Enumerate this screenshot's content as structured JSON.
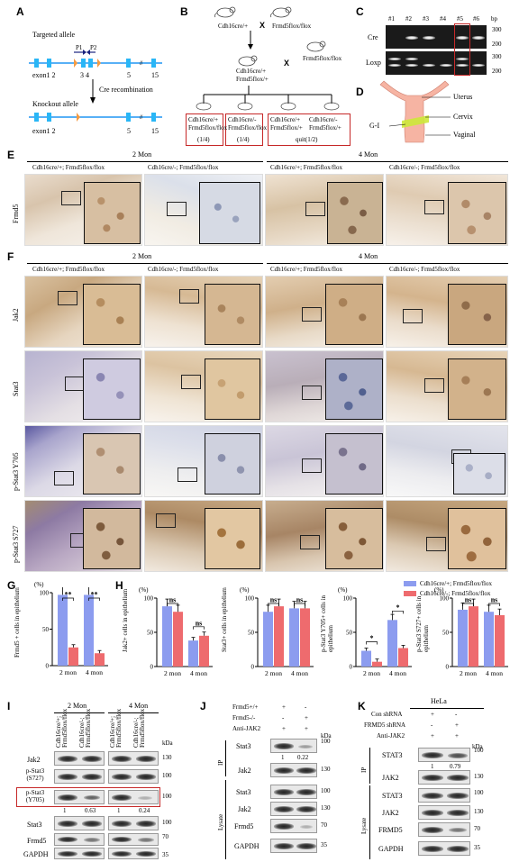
{
  "labels": {
    "A": "A",
    "B": "B",
    "C": "C",
    "D": "D",
    "E": "E",
    "F": "F",
    "G": "G",
    "H": "H",
    "I": "I",
    "J": "J",
    "K": "K"
  },
  "panelA": {
    "targeted": "Targeted allele",
    "p1": "P1",
    "p2": "P2",
    "exon_top": "exon1 2",
    "n34": "3 4",
    "n5": "5",
    "n15": "15",
    "cre": "Cre recombination",
    "knockout": "Knockout allele",
    "exon_bot": "exon1 2",
    "n5b": "5",
    "n15b": "15"
  },
  "panelB": {
    "mouse1": "Cdh16cre/+",
    "cross": "X",
    "mouse2": "Frmd5flox/flox",
    "f1a": "Cdh16cre/+",
    "f1b": "Frmd5flox/+",
    "cross2": "X",
    "mouse3": "Frmd5flox/flox",
    "o1a": "Cdh16cre/+",
    "o1b": "Frmd5flox/flox",
    "o1c": "(1/4)",
    "o2a": "Cdh16cre/-",
    "o2b": "Frmd5flox/flox",
    "o2c": "(1/4)",
    "o3a": "Cdh16cre/+",
    "o3b": "Frmd5flox/+",
    "o4a": "Cdh16cre/-",
    "o4b": "Frmd5flox/+",
    "o34c": "quit(1/2)"
  },
  "panelC": {
    "lanes": [
      "#1",
      "#2",
      "#3",
      "#4",
      "#5",
      "#6"
    ],
    "bp": "bp",
    "row1": "Cre",
    "row2": "Loxp",
    "m300a": "300",
    "m200a": "200",
    "m300b": "300",
    "m200b": "200"
  },
  "panelD": {
    "uterus": "Uterus",
    "cervix": "Cervix",
    "gi": "G-I",
    "vaginal": "Vaginal"
  },
  "panelE": {
    "mon2": "2 Mon",
    "mon4": "4 Mon",
    "g1": "Cdh16cre/+; Frmd5flox/flox",
    "g2": "Cdh16cre/-; Frmd5flox/flox",
    "g3": "Cdh16cre/+; Frmd5flox/flox",
    "g4": "Cdh16cre/-; Frmd5flox/flox",
    "row": "Frmd5"
  },
  "panelF": {
    "mon2": "2 Mon",
    "mon4": "4 Mon",
    "g1": "Cdh16cre/+; Frmd5flox/flox",
    "g2": "Cdh16cre/-; Frmd5flox/flox",
    "g3": "Cdh16cre/+; Frmd5flox/flox",
    "g4": "Cdh16cre/-; Frmd5flox/flox",
    "rows": [
      "Jak2",
      "Stat3",
      "p-Stat3 Y705",
      "p-Stat3 S727"
    ]
  },
  "panelG": {
    "ylabel": "Frmd5 + cells in epithelium",
    "unit": "(%)",
    "ticks": [
      "100",
      "50",
      "0"
    ],
    "xticks": [
      "2 mon",
      "4 mon"
    ],
    "sig": [
      "**",
      "**"
    ]
  },
  "panelH": {
    "legend1": "Cdh16cre/+; Frmd5flox/flox",
    "legend2": "Cdh16cre/-; Frmd5flox/flox",
    "unit": "(%)",
    "charts": [
      {
        "ylabel": "Jak2+ cells in epithelium",
        "ticks": [
          "100",
          "50",
          "0"
        ],
        "sig": [
          "ns",
          "ns"
        ]
      },
      {
        "ylabel": "Stat3+ cells in epithelium",
        "ticks": [
          "100",
          "50",
          "0"
        ],
        "sig": [
          "ns",
          "ns"
        ]
      },
      {
        "ylabel": "p-Stat3 Y705+ cells in epithelium",
        "ticks": [
          "100",
          "50",
          "0"
        ],
        "sig": [
          "*",
          "*"
        ]
      },
      {
        "ylabel": "p-Stat3 S727+ cells in epithelium",
        "ticks": [
          "100",
          "50",
          "0"
        ],
        "sig": [
          "ns",
          "ns"
        ]
      }
    ],
    "xticks": [
      "2 mon",
      "4 mon"
    ]
  },
  "panelI": {
    "mon2": "2 Mon",
    "mon4": "4 Mon",
    "col1": "Cdh16cre/+; Frmd5flox/flox",
    "col2": "Cdh16cre/-; Frmd5flox/flox",
    "rows": [
      "Jak2",
      "p-Stat3 (S727)",
      "p-Stat3 (Y705)",
      "Stat3",
      "Frmd5",
      "GAPDH"
    ],
    "kda": "kDa",
    "mw": [
      "130",
      "100",
      "100",
      "70",
      "35"
    ],
    "q1": "1",
    "q2": "0.63",
    "q3": "1",
    "q4": "0.24"
  },
  "panelJ": {
    "h1": "Frmd5+/+",
    "h2": "Frmd5-/-",
    "h3": "Anti-JAK2",
    "s1": [
      "+",
      "-"
    ],
    "s2": [
      "-",
      "+"
    ],
    "s3": [
      "+",
      "+"
    ],
    "kda": "kDa",
    "ip": "IP",
    "lysate": "Lysate",
    "rows": [
      "Stat3",
      "Jak2",
      "Stat3",
      "Jak2",
      "Frmd5",
      "GAPDH"
    ],
    "mw": [
      "100",
      "130",
      "100",
      "130",
      "70",
      "35"
    ],
    "q1": "1",
    "q2": "0.22"
  },
  "panelK": {
    "hela": "HeLa",
    "h1": "Con shRNA",
    "h2": "FRMD5 shRNA",
    "h3": "Anti-JAK2",
    "s1": [
      "+",
      "-"
    ],
    "s2": [
      "-",
      "+"
    ],
    "s3": [
      "+",
      "+"
    ],
    "kda": "kDa",
    "ip": "IP",
    "lysate": "Lysate",
    "rows": [
      "STAT3",
      "JAK2",
      "STAT3",
      "JAK2",
      "FRMD5",
      "GAPDH"
    ],
    "mw": [
      "100",
      "130",
      "100",
      "130",
      "70",
      "35"
    ],
    "q1": "1",
    "q2": "0.79"
  },
  "colors": {
    "blue": "#8c9cef",
    "red": "#ee6b6e",
    "boxred": "#c62828"
  },
  "chart_data": [
    {
      "type": "bar",
      "categories": [
        "2 mon",
        "4 mon"
      ],
      "series": [
        {
          "name": "Cdh16cre/+; Frmd5flox/flox",
          "values": [
            97,
            97
          ]
        },
        {
          "name": "Cdh16cre/-; Frmd5flox/flox",
          "values": [
            25,
            17
          ]
        }
      ],
      "ylabel": "Frmd5 + cells in epithelium",
      "ylim": [
        0,
        100
      ]
    },
    {
      "type": "bar",
      "categories": [
        "2 mon",
        "4 mon"
      ],
      "series": [
        {
          "name": "Cdh16cre/+; Frmd5flox/flox",
          "values": [
            88,
            38
          ]
        },
        {
          "name": "Cdh16cre/-; Frmd5flox/flox",
          "values": [
            80,
            45
          ]
        }
      ],
      "ylabel": "Jak2+ cells in epithelium",
      "ylim": [
        0,
        100
      ]
    },
    {
      "type": "bar",
      "categories": [
        "2 mon",
        "4 mon"
      ],
      "series": [
        {
          "name": "Cdh16cre/+; Frmd5flox/flox",
          "values": [
            80,
            85
          ]
        },
        {
          "name": "Cdh16cre/-; Frmd5flox/flox",
          "values": [
            88,
            85
          ]
        }
      ],
      "ylabel": "Stat3+ cells in epithelium",
      "ylim": [
        0,
        100
      ]
    },
    {
      "type": "bar",
      "categories": [
        "2 mon",
        "4 mon"
      ],
      "series": [
        {
          "name": "Cdh16cre/+; Frmd5flox/flox",
          "values": [
            23,
            68
          ]
        },
        {
          "name": "Cdh16cre/-; Frmd5flox/flox",
          "values": [
            7,
            27
          ]
        }
      ],
      "ylabel": "p-Stat3 Y705+ cells in epithelium",
      "ylim": [
        0,
        100
      ]
    },
    {
      "type": "bar",
      "categories": [
        "2 mon",
        "4 mon"
      ],
      "series": [
        {
          "name": "Cdh16cre/+; Frmd5flox/flox",
          "values": [
            83,
            80
          ]
        },
        {
          "name": "Cdh16cre/-; Frmd5flox/flox",
          "values": [
            88,
            75
          ]
        }
      ],
      "ylabel": "p-Stat3 S727+ cells in epithelium",
      "ylim": [
        0,
        100
      ]
    }
  ]
}
